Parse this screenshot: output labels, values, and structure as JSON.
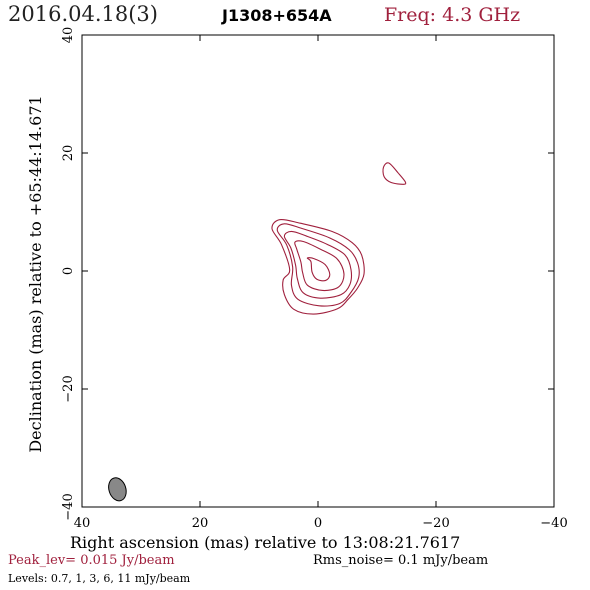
{
  "header": {
    "date": "2016.04.18(3)",
    "source": "J1308+654A",
    "freq": "Freq: 4.3 GHz"
  },
  "chart_data": {
    "type": "contour",
    "xlabel": "Right ascension (mas) relative to 13:08:21.7617",
    "ylabel": "Declination (mas) relative to +65:44:14.671",
    "xlim": [
      40,
      -40
    ],
    "ylim": [
      -40,
      40
    ],
    "xticks": [
      40,
      20,
      0,
      -20,
      -40
    ],
    "yticks": [
      -40,
      -20,
      0,
      20,
      40
    ],
    "xtick_labels": [
      "40",
      "20",
      "0",
      "−20",
      "−40"
    ],
    "ytick_labels": [
      "−40",
      "−20",
      "0",
      "20",
      "40"
    ],
    "contour_levels_mJy": [
      0.7,
      1,
      3,
      6,
      11
    ],
    "contour_color": "#a0203d",
    "contours": [
      [
        [
          4.8,
          0.2
        ],
        [
          6.2,
          4.5
        ],
        [
          7.8,
          7.2
        ],
        [
          6.5,
          8.7
        ],
        [
          3.0,
          8.1
        ],
        [
          -2.4,
          6.7
        ],
        [
          -5.8,
          4.8
        ],
        [
          -7.4,
          2.7
        ],
        [
          -7.8,
          -0.5
        ],
        [
          -6.7,
          -2.9
        ],
        [
          -5.1,
          -4.8
        ],
        [
          -3.3,
          -6.4
        ],
        [
          0.7,
          -7.3
        ],
        [
          4.1,
          -6.5
        ],
        [
          5.7,
          -4.0
        ],
        [
          5.9,
          -1.5
        ]
      ],
      [
        [
          -12.0,
          18.3
        ],
        [
          -13.6,
          16.6
        ],
        [
          -14.8,
          15.1
        ],
        [
          -14.5,
          14.7
        ],
        [
          -12.4,
          15.0
        ],
        [
          -11.2,
          16.0
        ],
        [
          -11.1,
          17.6
        ]
      ],
      [
        [
          4.3,
          0.7
        ],
        [
          5.3,
          4.4
        ],
        [
          6.9,
          6.9
        ],
        [
          5.7,
          8.0
        ],
        [
          2.7,
          7.2
        ],
        [
          -2.0,
          5.6
        ],
        [
          -5.3,
          3.6
        ],
        [
          -6.7,
          1.4
        ],
        [
          -6.9,
          -1.1
        ],
        [
          -5.6,
          -3.6
        ],
        [
          -3.7,
          -5.5
        ],
        [
          -0.2,
          -5.9
        ],
        [
          3.4,
          -4.8
        ],
        [
          4.5,
          -2.4
        ]
      ],
      [
        [
          3.8,
          1.0
        ],
        [
          4.6,
          3.9
        ],
        [
          5.7,
          5.9
        ],
        [
          4.5,
          6.7
        ],
        [
          1.9,
          5.9
        ],
        [
          -1.6,
          4.5
        ],
        [
          -4.6,
          2.7
        ],
        [
          -5.6,
          0.2
        ],
        [
          -5.4,
          -2.3
        ],
        [
          -3.9,
          -4.0
        ],
        [
          -0.4,
          -4.6
        ],
        [
          2.5,
          -3.7
        ],
        [
          3.5,
          -1.3
        ]
      ],
      [
        [
          2.9,
          1.5
        ],
        [
          3.6,
          3.7
        ],
        [
          3.9,
          4.9
        ],
        [
          2.5,
          5.0
        ],
        [
          -0.2,
          3.8
        ],
        [
          -3.2,
          2.1
        ],
        [
          -4.4,
          -0.5
        ],
        [
          -3.5,
          -2.7
        ],
        [
          -0.8,
          -3.3
        ],
        [
          1.8,
          -2.4
        ],
        [
          2.6,
          -0.3
        ]
      ],
      [
        [
          1.2,
          1.6
        ],
        [
          1.8,
          2.2
        ],
        [
          0.7,
          2.1
        ],
        [
          -1.2,
          1.1
        ],
        [
          -2.0,
          -0.6
        ],
        [
          -1.3,
          -1.6
        ],
        [
          0.2,
          -1.4
        ],
        [
          1.0,
          -0.2
        ]
      ]
    ],
    "beam": {
      "x": 34,
      "y": -37,
      "bmaj": 4.2,
      "bmin": 3.0,
      "pa": -18,
      "fill": "#888888"
    }
  },
  "footer": {
    "peak": "Peak_lev=  0.015 Jy/beam",
    "rms": "Rms_noise=   0.1 mJy/beam",
    "levels": "Levels: 0.7,   1,   3,   6,  11 mJy/beam"
  }
}
